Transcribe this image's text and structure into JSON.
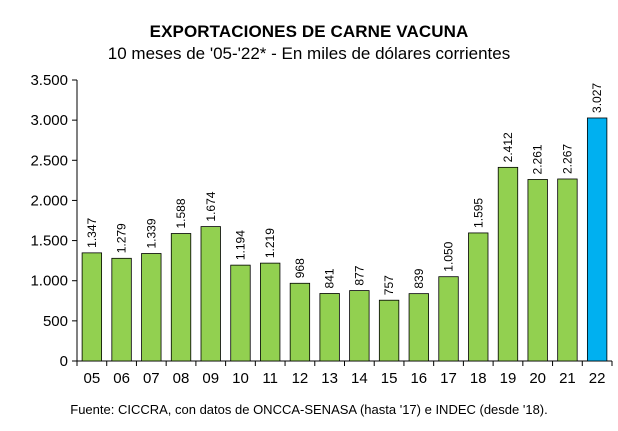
{
  "chart_data": {
    "type": "bar",
    "title": "EXPORTACIONES DE CARNE VACUNA",
    "subtitle": "10 meses de '05-'22* - En miles de dólares corrientes",
    "source": "Fuente: CICCRA, con datos de ONCCA-SENASA (hasta '17) e INDEC (desde '18).",
    "xlabel": "",
    "ylabel": "",
    "categories": [
      "05",
      "06",
      "07",
      "08",
      "09",
      "10",
      "11",
      "12",
      "13",
      "14",
      "15",
      "16",
      "17",
      "18",
      "19",
      "20",
      "21",
      "22"
    ],
    "values": [
      1347,
      1279,
      1339,
      1588,
      1674,
      1194,
      1219,
      968,
      841,
      877,
      757,
      839,
      1050,
      1595,
      2412,
      2261,
      2267,
      3027
    ],
    "value_labels": [
      "1.347",
      "1.279",
      "1.339",
      "1.588",
      "1.674",
      "1.194",
      "1.219",
      "968",
      "841",
      "877",
      "757",
      "839",
      "1.050",
      "1.595",
      "2.412",
      "2.261",
      "2.267",
      "3.027"
    ],
    "ylim": [
      0,
      3500
    ],
    "yticks": [
      0,
      500,
      1000,
      1500,
      2000,
      2500,
      3000,
      3500
    ],
    "ytick_labels": [
      "0",
      "500",
      "1.000",
      "1.500",
      "2.000",
      "2.500",
      "3.000",
      "3.500"
    ],
    "grid": false,
    "colors": {
      "bar": "#92d050",
      "highlight_bar": "#00b0f0",
      "bar_stroke": "#000000"
    },
    "highlight_category": "22"
  }
}
